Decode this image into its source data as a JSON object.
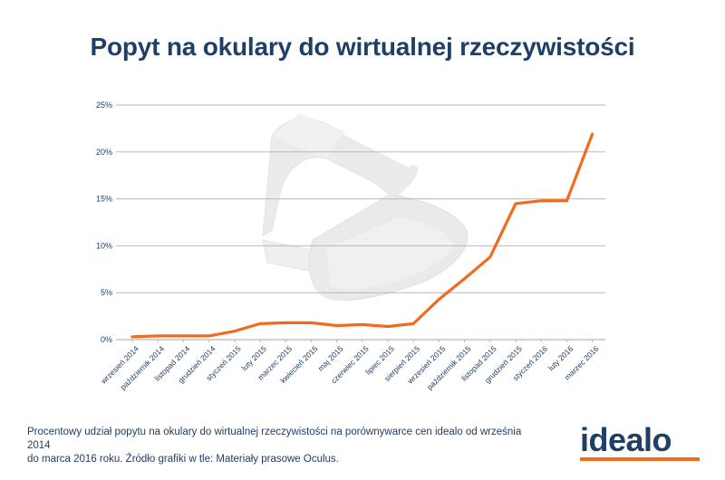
{
  "title": "Popyt na okulary do wirtualnej rzeczywistości",
  "footnote": {
    "line1": "Procentowy udział popytu na okulary do wirtualnej rzeczywistości na porównywarce cen idealo od września 2014",
    "line2": "do marca 2016 roku. Źródło grafiki w tle: Materiały prasowe Oculus."
  },
  "logo": {
    "text": "idealo",
    "accent_color": "#f26b1d",
    "text_color": "#1f3f66"
  },
  "chart_data": {
    "type": "line",
    "title": "Popyt na okulary do wirtualnej rzeczywistości",
    "xlabel": "",
    "ylabel": "",
    "categories": [
      "wrzesień 2014",
      "październik 2014",
      "listopad 2014",
      "grudzień 2014",
      "styczeń 2015",
      "luty 2015",
      "marzec 2015",
      "kwiecień 2015",
      "maj 2015",
      "czerwiec 2015",
      "lipiec 2015",
      "sierpień 2015",
      "wrzesień 2015",
      "październik 2015",
      "listopad 2015",
      "grudzień 2015",
      "styczeń 2016",
      "luty 2016",
      "marzec 2016"
    ],
    "values": [
      0.3,
      0.4,
      0.4,
      0.4,
      0.9,
      1.7,
      1.8,
      1.8,
      1.5,
      1.6,
      1.4,
      1.7,
      4.3,
      6.5,
      8.8,
      14.5,
      14.8,
      14.8,
      21.9
    ],
    "ylim": [
      0,
      25
    ],
    "yticks": [
      0,
      5,
      10,
      15,
      20,
      25
    ],
    "ytick_labels": [
      "0%",
      "5%",
      "10%",
      "15%",
      "20%",
      "25%"
    ],
    "grid": true,
    "line_color": "#f26b1d",
    "grid_color": "#b8b8b8",
    "label_color": "#1f3f66"
  }
}
